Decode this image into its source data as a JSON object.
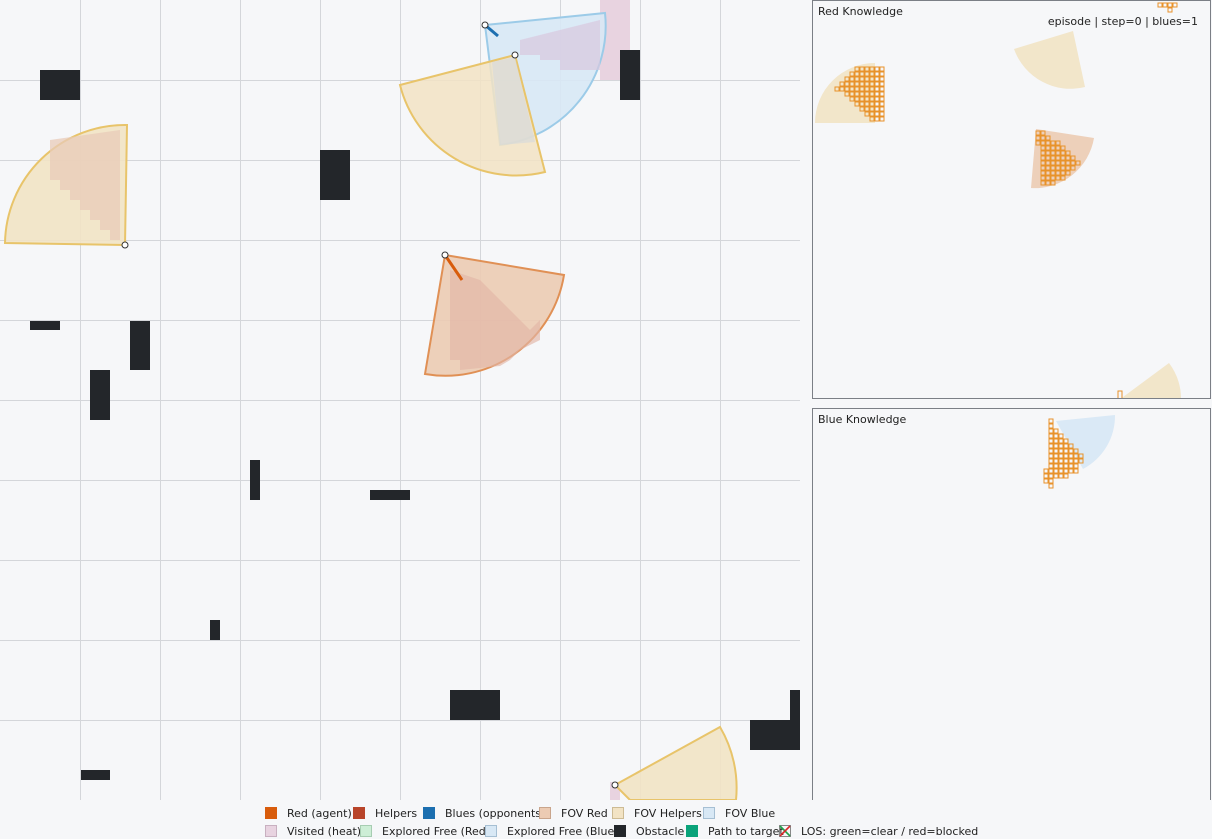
{
  "panels": {
    "red_title": "Red Knowledge",
    "blue_title": "Blue Knowledge",
    "status": "episode | step=0 | blues=1"
  },
  "colors": {
    "background": "#f6f7f9",
    "grid": "#d4d6da",
    "red_agent": "#d85c0c",
    "helpers": "#b8442a",
    "blues": "#1c6fb0",
    "fov_red": "#eccbb3",
    "fov_helpers": "#f2e3c4",
    "fov_blue": "#d8e8f5",
    "visited": "#e8d3e0",
    "explored_red": "#cdeed6",
    "explored_blue": "#d8e8f5",
    "obstacle": "#23262a",
    "path": "#0aa37a",
    "helper_outline": "#e8c46a",
    "red_outline": "#e09055",
    "blue_outline": "#9ccbe8",
    "grid_marker": "#e8922a"
  },
  "legend": [
    {
      "label": "Red (agent)",
      "color": "#d85c0c"
    },
    {
      "label": "Helpers",
      "color": "#b8442a"
    },
    {
      "label": "Blues (opponents)",
      "color": "#1c6fb0"
    },
    {
      "label": "FOV Red",
      "color": "#eccbb3"
    },
    {
      "label": "FOV Helpers",
      "color": "#f2e3c4"
    },
    {
      "label": "FOV Blue",
      "color": "#d8e8f5"
    },
    {
      "label": "Visited (heat)",
      "color": "#e8d3e0"
    },
    {
      "label": "Explored Free (Red)",
      "color": "#cdeed6"
    },
    {
      "label": "Explored Free (Blue)",
      "color": "#d8e8f5"
    },
    {
      "label": "Obstacle",
      "color": "#23262a"
    },
    {
      "label": "Path to target",
      "color": "#0aa37a"
    },
    {
      "label": "LOS: green=clear / red=blocked",
      "icon": "los-cross-icon"
    }
  ]
}
